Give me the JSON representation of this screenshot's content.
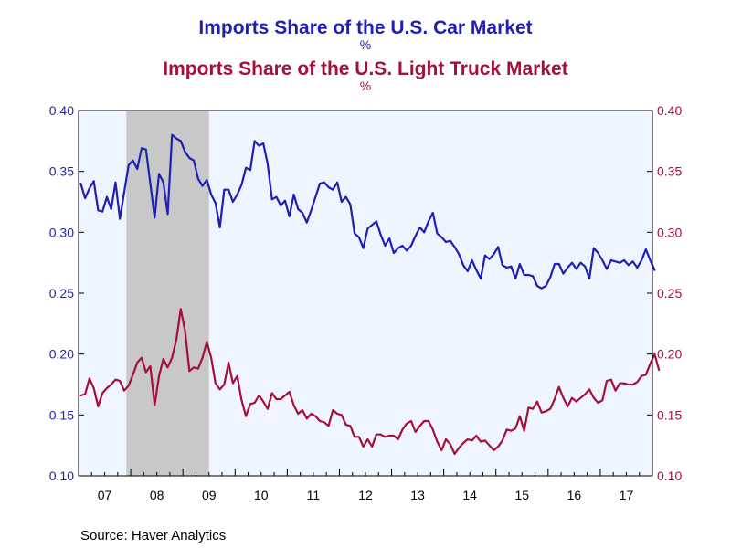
{
  "header": {
    "title_car": "Imports Share of the U.S. Car Market",
    "unit_car": "%",
    "title_truck": "Imports Share of the U.S. Light Truck Market",
    "unit_truck": "%"
  },
  "footer": {
    "source": "Source:  Haver Analytics"
  },
  "colors": {
    "car": "#1f1fb4",
    "truck": "#a50f3a",
    "plot_bg": "#eef5ff",
    "recession": "#c8c8c8"
  },
  "chart_data": {
    "type": "line",
    "x_start": "2007-01",
    "x_end": "2017-12",
    "ylim": [
      0.1,
      0.4
    ],
    "yticks": [
      "0.10",
      "0.15",
      "0.20",
      "0.25",
      "0.30",
      "0.35",
      "0.40"
    ],
    "xtick_labels": [
      "07",
      "08",
      "09",
      "10",
      "11",
      "12",
      "13",
      "14",
      "15",
      "16",
      "17"
    ],
    "left_axis_color": "blue",
    "right_axis_color": "red",
    "recession_shading": {
      "start": "2007-12",
      "end": "2009-06"
    },
    "grid": false,
    "series": [
      {
        "axis": "left",
        "values": [
          0.34,
          0.328,
          0.336,
          0.342,
          0.318,
          0.317,
          0.329,
          0.319,
          0.341,
          0.311,
          0.333,
          0.355,
          0.359,
          0.352,
          0.369,
          0.368,
          0.34,
          0.312,
          0.348,
          0.341,
          0.315,
          0.38,
          0.377,
          0.375,
          0.366,
          0.361,
          0.359,
          0.344,
          0.338,
          0.343,
          0.331,
          0.324,
          0.304,
          0.335,
          0.335,
          0.325,
          0.331,
          0.339,
          0.353,
          0.351,
          0.375,
          0.371,
          0.373,
          0.356,
          0.327,
          0.329,
          0.322,
          0.326,
          0.313,
          0.331,
          0.319,
          0.316,
          0.308,
          0.318,
          0.329,
          0.34,
          0.341,
          0.337,
          0.335,
          0.341,
          0.325,
          0.329,
          0.323,
          0.299,
          0.296,
          0.287,
          0.303,
          0.306,
          0.309,
          0.298,
          0.289,
          0.295,
          0.283,
          0.287,
          0.289,
          0.285,
          0.289,
          0.297,
          0.304,
          0.3,
          0.309,
          0.316,
          0.299,
          0.296,
          0.292,
          0.293,
          0.288,
          0.282,
          0.273,
          0.268,
          0.277,
          0.269,
          0.262,
          0.281,
          0.278,
          0.282,
          0.288,
          0.273,
          0.271,
          0.272,
          0.262,
          0.274,
          0.265,
          0.265,
          0.264,
          0.256,
          0.254,
          0.256,
          0.263,
          0.274,
          0.274,
          0.266,
          0.271,
          0.275,
          0.27,
          0.275,
          0.272,
          0.262,
          0.287,
          0.283,
          0.277,
          0.27,
          0.277,
          0.276,
          0.275,
          0.277,
          0.273,
          0.276,
          0.271,
          0.277,
          0.286,
          0.277,
          0.269
        ],
        "color_ref": "car"
      },
      {
        "axis": "right",
        "values": [
          0.166,
          0.167,
          0.18,
          0.172,
          0.157,
          0.168,
          0.172,
          0.175,
          0.179,
          0.178,
          0.17,
          0.174,
          0.183,
          0.193,
          0.197,
          0.185,
          0.19,
          0.158,
          0.182,
          0.196,
          0.189,
          0.197,
          0.212,
          0.237,
          0.219,
          0.186,
          0.189,
          0.188,
          0.197,
          0.21,
          0.197,
          0.176,
          0.171,
          0.175,
          0.193,
          0.176,
          0.182,
          0.162,
          0.149,
          0.159,
          0.16,
          0.166,
          0.161,
          0.155,
          0.168,
          0.163,
          0.163,
          0.166,
          0.169,
          0.158,
          0.151,
          0.154,
          0.147,
          0.151,
          0.149,
          0.145,
          0.144,
          0.141,
          0.154,
          0.151,
          0.15,
          0.142,
          0.141,
          0.132,
          0.132,
          0.124,
          0.13,
          0.124,
          0.134,
          0.134,
          0.132,
          0.133,
          0.133,
          0.13,
          0.138,
          0.143,
          0.145,
          0.136,
          0.141,
          0.145,
          0.145,
          0.138,
          0.128,
          0.121,
          0.13,
          0.126,
          0.118,
          0.123,
          0.127,
          0.13,
          0.129,
          0.133,
          0.128,
          0.129,
          0.125,
          0.121,
          0.124,
          0.129,
          0.138,
          0.137,
          0.139,
          0.149,
          0.137,
          0.156,
          0.155,
          0.161,
          0.152,
          0.153,
          0.155,
          0.163,
          0.173,
          0.164,
          0.157,
          0.164,
          0.161,
          0.164,
          0.167,
          0.171,
          0.164,
          0.16,
          0.162,
          0.178,
          0.179,
          0.17,
          0.176,
          0.176,
          0.175,
          0.175,
          0.177,
          0.182,
          0.183,
          0.192,
          0.2,
          0.187
        ],
        "color_ref": "truck"
      }
    ]
  }
}
